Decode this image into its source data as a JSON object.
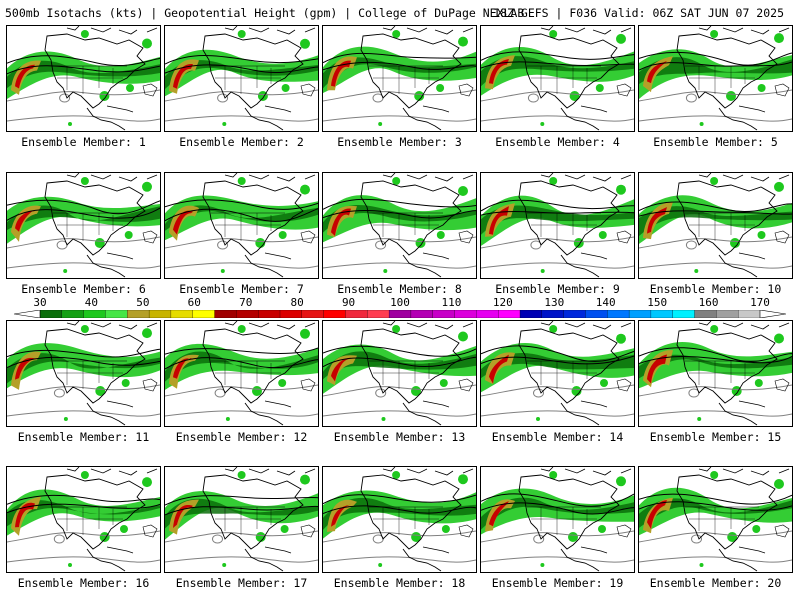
{
  "header": {
    "left": "500mb Isotachs (kts) | Geopotential Height (gpm) | College of DuPage NEXLAB",
    "right": "18Z GEFS | F036 Valid: 06Z SAT JUN 07 2025"
  },
  "members": [
    {
      "label": "Ensemble Member: 1"
    },
    {
      "label": "Ensemble Member: 2"
    },
    {
      "label": "Ensemble Member: 3"
    },
    {
      "label": "Ensemble Member: 4"
    },
    {
      "label": "Ensemble Member: 5"
    },
    {
      "label": "Ensemble Member: 6"
    },
    {
      "label": "Ensemble Member: 7"
    },
    {
      "label": "Ensemble Member: 8"
    },
    {
      "label": "Ensemble Member: 9"
    },
    {
      "label": "Ensemble Member: 10"
    },
    {
      "label": "Ensemble Member: 11"
    },
    {
      "label": "Ensemble Member: 12"
    },
    {
      "label": "Ensemble Member: 13"
    },
    {
      "label": "Ensemble Member: 14"
    },
    {
      "label": "Ensemble Member: 15"
    },
    {
      "label": "Ensemble Member: 16"
    },
    {
      "label": "Ensemble Member: 17"
    },
    {
      "label": "Ensemble Member: 18"
    },
    {
      "label": "Ensemble Member: 19"
    },
    {
      "label": "Ensemble Member: 20"
    }
  ],
  "colorbar": {
    "labels": [
      "30",
      "40",
      "50",
      "60",
      "70",
      "80",
      "90",
      "100",
      "110",
      "120",
      "130",
      "140",
      "150",
      "160",
      "170"
    ],
    "colors": [
      "#0a6e0a",
      "#14a014",
      "#1ec81e",
      "#46e646",
      "#b4a028",
      "#c8b400",
      "#e6dc00",
      "#ffff00",
      "#a00000",
      "#b40000",
      "#c80000",
      "#dc0000",
      "#e61414",
      "#ff0000",
      "#f0283c",
      "#ff3c50",
      "#a000a0",
      "#b400b4",
      "#c800c8",
      "#dc00dc",
      "#e600f0",
      "#ff00ff",
      "#0000b4",
      "#0014c8",
      "#0028dc",
      "#0050f0",
      "#0078ff",
      "#00a0ff",
      "#00c8ff",
      "#00f0ff",
      "#808080",
      "#a0a0a0",
      "#c8c8c8"
    ]
  }
}
